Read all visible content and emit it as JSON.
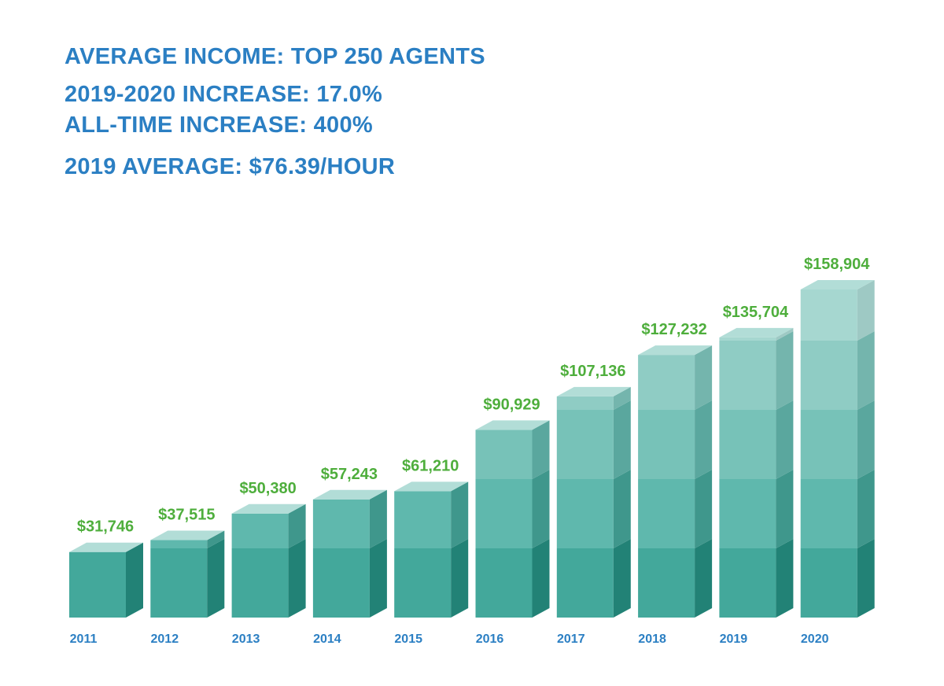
{
  "header": {
    "title": "AVERAGE INCOME: TOP 250 AGENTS",
    "line1": "2019-2020 INCREASE: 17.0%",
    "line2": "ALL-TIME INCREASE: 400%",
    "line3": "2019 AVERAGE: $76.39/HOUR"
  },
  "colors": {
    "headline": "#2b7fc3",
    "value_label": "#4eae3c",
    "tick_label": "#2b7fc3",
    "bar_tiers_front": [
      "#43a89b",
      "#5fb8ad",
      "#77c2b8",
      "#8fccc4",
      "#a6d7d0"
    ],
    "bar_tiers_side": [
      "#228276",
      "#3f978c",
      "#5aa79e",
      "#74b5ad",
      "#9ec9c4"
    ],
    "bar_top": "#b2ddd7"
  },
  "chart_data": {
    "type": "bar",
    "title": "AVERAGE INCOME: TOP 250 AGENTS",
    "categories": [
      "2011",
      "2012",
      "2013",
      "2014",
      "2015",
      "2016",
      "2017",
      "2018",
      "2019",
      "2020"
    ],
    "values": [
      31746,
      37515,
      50380,
      57243,
      61210,
      90929,
      107136,
      127232,
      135704,
      158904
    ],
    "value_labels": [
      "$31,746",
      "$37,515",
      "$50,380",
      "$57,243",
      "$61,210",
      "$90,929",
      "$107,136",
      "$127,232",
      "$135,704",
      "$158,904"
    ],
    "ylim": [
      0,
      160000
    ],
    "grid": false,
    "legend": "none"
  }
}
